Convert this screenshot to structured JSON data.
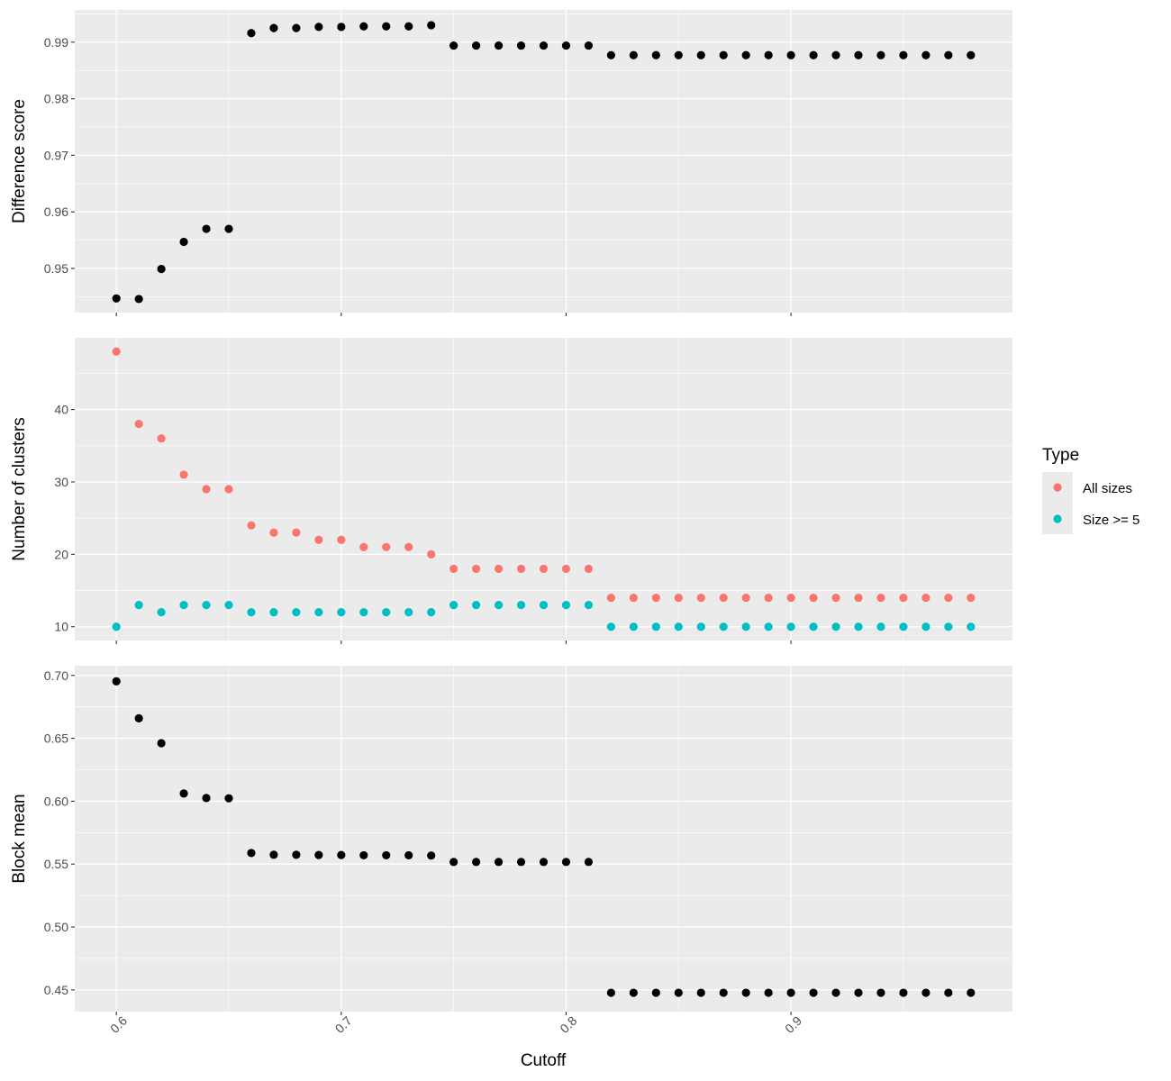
{
  "chart_data": [
    {
      "type": "scatter",
      "panel": "top",
      "xlabel": "",
      "ylabel": "Difference score",
      "xlim": [
        0.5815,
        0.9985
      ],
      "ylim": [
        0.9422,
        0.9957
      ],
      "xticks": [
        0.6,
        0.7,
        0.8,
        0.9
      ],
      "xtick_labels": [],
      "yticks": [
        0.95,
        0.96,
        0.97,
        0.98,
        0.99
      ],
      "ytick_labels": [
        "0.95",
        "0.96",
        "0.97",
        "0.98",
        "0.99"
      ],
      "grid": true,
      "series": [
        {
          "color": "#000000",
          "x": [
            0.6,
            0.61,
            0.62,
            0.63,
            0.64,
            0.65,
            0.66,
            0.67,
            0.68,
            0.69,
            0.7,
            0.71,
            0.72,
            0.73,
            0.74,
            0.75,
            0.76,
            0.77,
            0.78,
            0.79,
            0.8,
            0.81,
            0.82,
            0.83,
            0.84,
            0.85,
            0.86,
            0.87,
            0.88,
            0.89,
            0.9,
            0.91,
            0.92,
            0.93,
            0.94,
            0.95,
            0.96,
            0.97,
            0.98
          ],
          "y": [
            0.9447,
            0.9446,
            0.9499,
            0.9547,
            0.957,
            0.957,
            0.9916,
            0.9925,
            0.9925,
            0.9927,
            0.9927,
            0.9928,
            0.9928,
            0.9928,
            0.993,
            0.9894,
            0.9894,
            0.9894,
            0.9894,
            0.9894,
            0.9894,
            0.9894,
            0.9877,
            0.9877,
            0.9877,
            0.9877,
            0.9877,
            0.9877,
            0.9877,
            0.9877,
            0.9877,
            0.9877,
            0.9877,
            0.9877,
            0.9877,
            0.9877,
            0.9877,
            0.9877,
            0.9877
          ]
        }
      ]
    },
    {
      "type": "scatter",
      "panel": "middle",
      "xlabel": "",
      "ylabel": "Number of clusters",
      "xlim": [
        0.5815,
        0.9985
      ],
      "ylim": [
        8.1,
        49.9
      ],
      "xticks": [
        0.6,
        0.7,
        0.8,
        0.9
      ],
      "xtick_labels": [],
      "yticks": [
        10,
        20,
        30,
        40
      ],
      "ytick_labels": [
        "10",
        "20",
        "30",
        "40"
      ],
      "grid": true,
      "legend": {
        "title": "Type",
        "placement": "right",
        "entries": [
          {
            "label": "All sizes",
            "color": "#F8766D"
          },
          {
            "label": "Size >= 5",
            "color": "#00BFC4"
          }
        ]
      },
      "series": [
        {
          "name": "All sizes",
          "color": "#F8766D",
          "x": [
            0.6,
            0.61,
            0.62,
            0.63,
            0.64,
            0.65,
            0.66,
            0.67,
            0.68,
            0.69,
            0.7,
            0.71,
            0.72,
            0.73,
            0.74,
            0.75,
            0.76,
            0.77,
            0.78,
            0.79,
            0.8,
            0.81,
            0.82,
            0.83,
            0.84,
            0.85,
            0.86,
            0.87,
            0.88,
            0.89,
            0.9,
            0.91,
            0.92,
            0.93,
            0.94,
            0.95,
            0.96,
            0.97,
            0.98
          ],
          "y": [
            48,
            38,
            36,
            31,
            29,
            29,
            24,
            23,
            23,
            22,
            22,
            21,
            21,
            21,
            20,
            18,
            18,
            18,
            18,
            18,
            18,
            18,
            14,
            14,
            14,
            14,
            14,
            14,
            14,
            14,
            14,
            14,
            14,
            14,
            14,
            14,
            14,
            14,
            14
          ]
        },
        {
          "name": "Size >= 5",
          "color": "#00BFC4",
          "x": [
            0.6,
            0.61,
            0.62,
            0.63,
            0.64,
            0.65,
            0.66,
            0.67,
            0.68,
            0.69,
            0.7,
            0.71,
            0.72,
            0.73,
            0.74,
            0.75,
            0.76,
            0.77,
            0.78,
            0.79,
            0.8,
            0.81,
            0.82,
            0.83,
            0.84,
            0.85,
            0.86,
            0.87,
            0.88,
            0.89,
            0.9,
            0.91,
            0.92,
            0.93,
            0.94,
            0.95,
            0.96,
            0.97,
            0.98
          ],
          "y": [
            10,
            13,
            12,
            13,
            13,
            13,
            12,
            12,
            12,
            12,
            12,
            12,
            12,
            12,
            12,
            13,
            13,
            13,
            13,
            13,
            13,
            13,
            10,
            10,
            10,
            10,
            10,
            10,
            10,
            10,
            10,
            10,
            10,
            10,
            10,
            10,
            10,
            10,
            10
          ]
        }
      ]
    },
    {
      "type": "scatter",
      "panel": "bottom",
      "xlabel": "Cutoff",
      "ylabel": "Block mean",
      "xlim": [
        0.5815,
        0.9985
      ],
      "ylim": [
        0.4327,
        0.7077
      ],
      "xticks": [
        0.6,
        0.7,
        0.8,
        0.9
      ],
      "xtick_labels": [
        "0.6",
        "0.7",
        "0.8",
        "0.9"
      ],
      "yticks": [
        0.45,
        0.5,
        0.55,
        0.6,
        0.65,
        0.7
      ],
      "ytick_labels": [
        "0.45",
        "0.50",
        "0.55",
        "0.60",
        "0.65",
        "0.70"
      ],
      "grid": true,
      "series": [
        {
          "color": "#000000",
          "x": [
            0.6,
            0.61,
            0.62,
            0.63,
            0.64,
            0.65,
            0.66,
            0.67,
            0.68,
            0.69,
            0.7,
            0.71,
            0.72,
            0.73,
            0.74,
            0.75,
            0.76,
            0.77,
            0.78,
            0.79,
            0.8,
            0.81,
            0.82,
            0.83,
            0.84,
            0.85,
            0.86,
            0.87,
            0.88,
            0.89,
            0.9,
            0.91,
            0.92,
            0.93,
            0.94,
            0.95,
            0.96,
            0.97,
            0.98
          ],
          "y": [
            0.6953,
            0.6659,
            0.6461,
            0.6061,
            0.6025,
            0.6023,
            0.5588,
            0.5574,
            0.5574,
            0.5572,
            0.5572,
            0.557,
            0.557,
            0.557,
            0.5568,
            0.5517,
            0.5517,
            0.5517,
            0.5517,
            0.5517,
            0.5517,
            0.5517,
            0.4477,
            0.4477,
            0.4477,
            0.4477,
            0.4477,
            0.4477,
            0.4477,
            0.4477,
            0.4477,
            0.4477,
            0.4477,
            0.4477,
            0.4477,
            0.4477,
            0.4477,
            0.4477,
            0.4477
          ]
        }
      ]
    }
  ]
}
